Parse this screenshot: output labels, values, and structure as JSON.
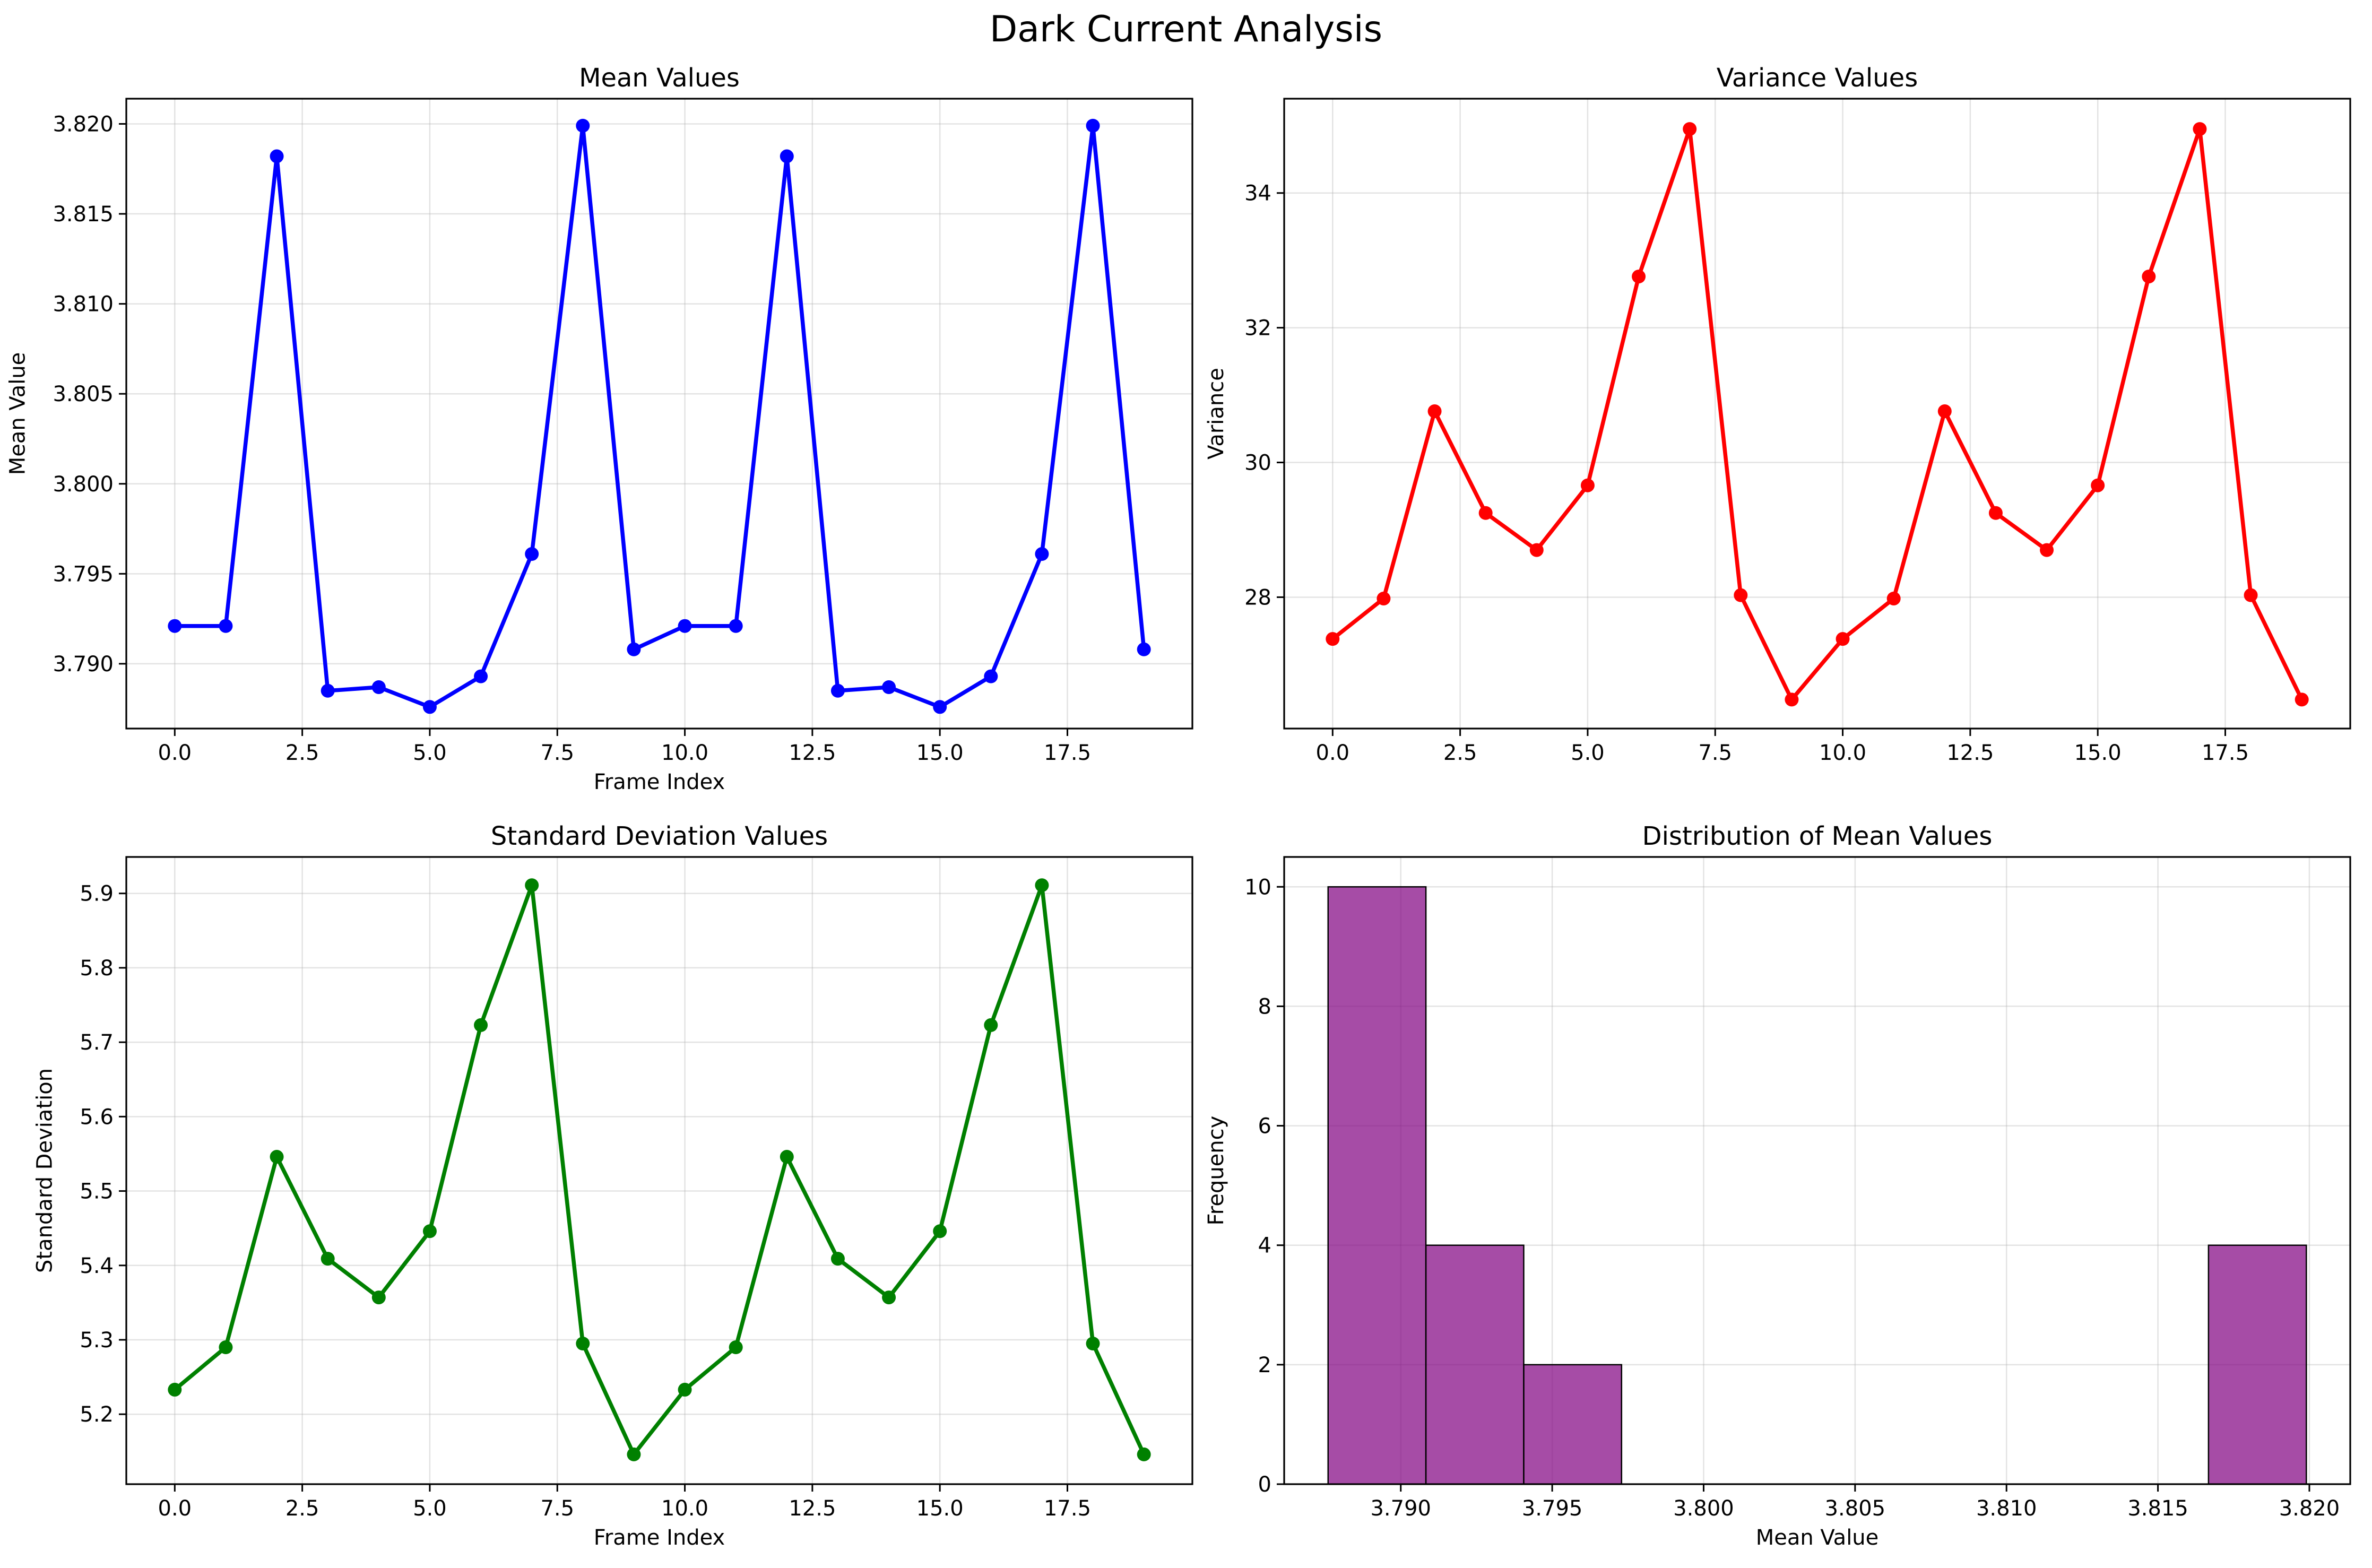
{
  "figure_title": "Dark Current Analysis",
  "chart_data": [
    {
      "type": "line",
      "title": "Mean Values",
      "xlabel": "Frame Index",
      "ylabel": "Mean Value",
      "color": "#0000ff",
      "grid": true,
      "xlim": [
        -0.95,
        19.95
      ],
      "ylim": [
        3.7864,
        3.8214
      ],
      "xticks": [
        "0.0",
        "2.5",
        "5.0",
        "7.5",
        "10.0",
        "12.5",
        "15.0",
        "17.5"
      ],
      "yticks": [
        "3.790",
        "3.795",
        "3.800",
        "3.805",
        "3.810",
        "3.815",
        "3.820"
      ],
      "x": [
        0,
        1,
        2,
        3,
        4,
        5,
        6,
        7,
        8,
        9,
        10,
        11,
        12,
        13,
        14,
        15,
        16,
        17,
        18,
        19
      ],
      "y": [
        3.7921,
        3.7921,
        3.8182,
        3.7885,
        3.7887,
        3.7876,
        3.7893,
        3.7961,
        3.8199,
        3.7908,
        3.7921,
        3.7921,
        3.8182,
        3.7885,
        3.7887,
        3.7876,
        3.7893,
        3.7961,
        3.8199,
        3.7908
      ]
    },
    {
      "type": "line",
      "title": "Variance Values",
      "xlabel": "",
      "ylabel": "Variance",
      "color": "#ff0000",
      "grid": true,
      "xlim": [
        -0.95,
        19.95
      ],
      "ylim": [
        26.05,
        35.4
      ],
      "xticks": [
        "0.0",
        "2.5",
        "5.0",
        "7.5",
        "10.0",
        "12.5",
        "15.0",
        "17.5"
      ],
      "yticks": [
        "28",
        "30",
        "32",
        "34"
      ],
      "x": [
        0,
        1,
        2,
        3,
        4,
        5,
        6,
        7,
        8,
        9,
        10,
        11,
        12,
        13,
        14,
        15,
        16,
        17,
        18,
        19
      ],
      "y": [
        27.38,
        27.98,
        30.76,
        29.25,
        28.7,
        29.66,
        32.76,
        34.95,
        28.03,
        26.48,
        27.38,
        27.98,
        30.76,
        29.25,
        28.7,
        29.66,
        32.76,
        34.95,
        28.03,
        26.48
      ]
    },
    {
      "type": "line",
      "title": "Standard Deviation Values",
      "xlabel": "Frame Index",
      "ylabel": "Standard Deviation",
      "color": "#008000",
      "grid": true,
      "xlim": [
        -0.95,
        19.95
      ],
      "ylim": [
        5.106,
        5.949
      ],
      "xticks": [
        "0.0",
        "2.5",
        "5.0",
        "7.5",
        "10.0",
        "12.5",
        "15.0",
        "17.5"
      ],
      "yticks": [
        "5.2",
        "5.3",
        "5.4",
        "5.5",
        "5.6",
        "5.7",
        "5.8",
        "5.9"
      ],
      "x": [
        0,
        1,
        2,
        3,
        4,
        5,
        6,
        7,
        8,
        9,
        10,
        11,
        12,
        13,
        14,
        15,
        16,
        17,
        18,
        19
      ],
      "y": [
        5.233,
        5.29,
        5.546,
        5.409,
        5.357,
        5.446,
        5.723,
        5.911,
        5.295,
        5.146,
        5.233,
        5.29,
        5.546,
        5.409,
        5.357,
        5.446,
        5.723,
        5.911,
        5.295,
        5.146
      ]
    },
    {
      "type": "bar",
      "title": "Distribution of Mean Values",
      "xlabel": "Mean Value",
      "ylabel": "Frequency",
      "color": "#800080",
      "grid": true,
      "xlim": [
        3.78615,
        3.82135
      ],
      "ylim": [
        0,
        10.5
      ],
      "xticks": [
        "3.790",
        "3.795",
        "3.800",
        "3.805",
        "3.810",
        "3.815",
        "3.820"
      ],
      "yticks": [
        "0",
        "2",
        "4",
        "6",
        "8",
        "10"
      ],
      "bin_edges": [
        3.7876,
        3.79083,
        3.79406,
        3.79729,
        3.80052,
        3.80375,
        3.80698,
        3.81021,
        3.81344,
        3.81667,
        3.8199
      ],
      "values": [
        10,
        4,
        2,
        0,
        0,
        0,
        0,
        0,
        0,
        4
      ]
    }
  ]
}
